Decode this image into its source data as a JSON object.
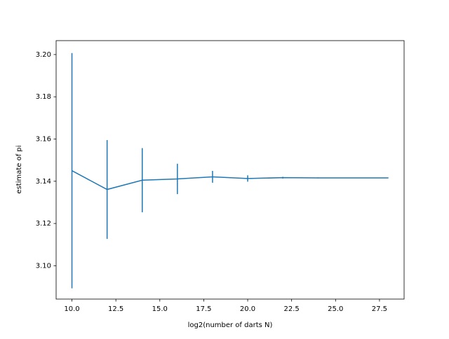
{
  "chart_data": {
    "type": "errorbar",
    "xlabel": "log2(number of darts N)",
    "ylabel": "estimate of pi",
    "color": "#1f77b4",
    "x": [
      10,
      12,
      14,
      16,
      18,
      20,
      22,
      24,
      26,
      28
    ],
    "values": [
      3.145,
      3.1361,
      3.1405,
      3.1411,
      3.1421,
      3.1413,
      3.1417,
      3.1416,
      3.1416,
      3.1416
    ],
    "errors": [
      0.0557,
      0.0234,
      0.0152,
      0.0072,
      0.0028,
      0.0015,
      0.0004,
      0.0002,
      0.0001,
      0.0001
    ],
    "xlim": [
      9.1,
      28.9
    ],
    "ylim": [
      3.0842,
      3.2066
    ],
    "xticks": [
      {
        "value": 10,
        "label": "10.0"
      },
      {
        "value": 12.5,
        "label": "12.5"
      },
      {
        "value": 15,
        "label": "15.0"
      },
      {
        "value": 17.5,
        "label": "17.5"
      },
      {
        "value": 20,
        "label": "20.0"
      },
      {
        "value": 22.5,
        "label": "22.5"
      },
      {
        "value": 25,
        "label": "25.0"
      },
      {
        "value": 27.5,
        "label": "27.5"
      }
    ],
    "yticks": [
      {
        "value": 3.1,
        "label": "3.10"
      },
      {
        "value": 3.12,
        "label": "3.12"
      },
      {
        "value": 3.14,
        "label": "3.14"
      },
      {
        "value": 3.16,
        "label": "3.16"
      },
      {
        "value": 3.18,
        "label": "3.18"
      },
      {
        "value": 3.2,
        "label": "3.20"
      }
    ]
  }
}
